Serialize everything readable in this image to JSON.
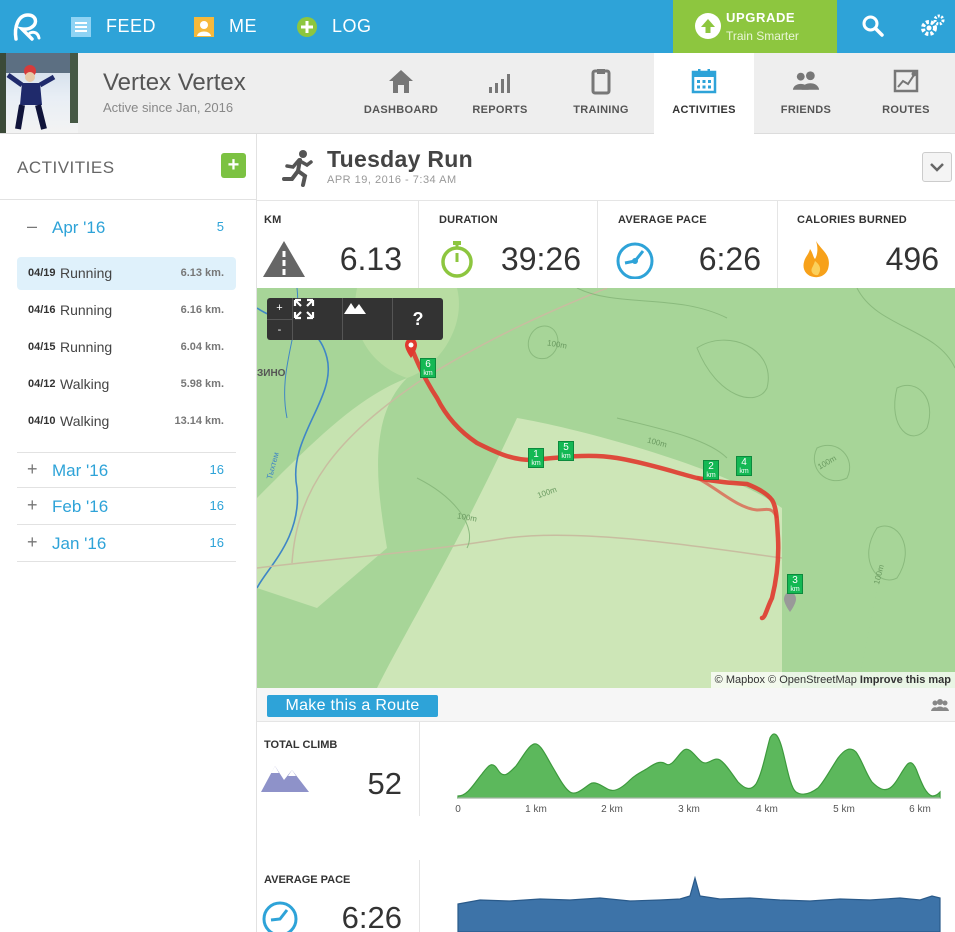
{
  "nav": {
    "feed": "FEED",
    "me": "ME",
    "log": "LOG",
    "upgrade_title": "UPGRADE",
    "upgrade_sub": "Train Smarter"
  },
  "profile": {
    "name": "Vertex Vertex",
    "since": "Active since Jan, 2016"
  },
  "tabs": [
    {
      "label": "DASHBOARD"
    },
    {
      "label": "REPORTS"
    },
    {
      "label": "TRAINING"
    },
    {
      "label": "ACTIVITIES"
    },
    {
      "label": "FRIENDS"
    },
    {
      "label": "ROUTES"
    }
  ],
  "sidebar": {
    "title": "ACTIVITIES",
    "add_label": "+",
    "months": [
      {
        "sign": "–",
        "name": "Apr '16",
        "count": "5"
      },
      {
        "sign": "+",
        "name": "Mar '16",
        "count": "16"
      },
      {
        "sign": "+",
        "name": "Feb '16",
        "count": "16"
      },
      {
        "sign": "+",
        "name": "Jan '16",
        "count": "16"
      }
    ],
    "activities": [
      {
        "date": "04/19",
        "type": "Running",
        "dist": "6.13 km."
      },
      {
        "date": "04/16",
        "type": "Running",
        "dist": "6.16 km."
      },
      {
        "date": "04/15",
        "type": "Running",
        "dist": "6.04 km."
      },
      {
        "date": "04/12",
        "type": "Walking",
        "dist": "5.98 km."
      },
      {
        "date": "04/10",
        "type": "Walking",
        "dist": "13.14 km."
      }
    ]
  },
  "activity": {
    "title": "Tuesday Run",
    "date": "APR 19, 2016  -  7:34 AM"
  },
  "stats": [
    {
      "label": "KM",
      "value": "6.13"
    },
    {
      "label": "DURATION",
      "value": "39:26"
    },
    {
      "label": "AVERAGE PACE",
      "value": "6:26"
    },
    {
      "label": "CALORIES BURNED",
      "value": "496"
    }
  ],
  "map": {
    "zoom_in": "+",
    "zoom_out": "-",
    "help": "?",
    "place_label": "ЗИНО",
    "river_label": "Тыхтем",
    "contour_label": "100m",
    "attr_mapbox": "© Mapbox",
    "attr_osm": "© OpenStreetMap",
    "attr_improve": "Improve this map",
    "km_unit": "km",
    "markers": [
      "1",
      "2",
      "3",
      "4",
      "5",
      "6"
    ]
  },
  "route_button": "Make this a Route",
  "climb": {
    "label": "TOTAL CLIMB",
    "value": "52",
    "ticks": [
      "0",
      "1 km",
      "2 km",
      "3 km",
      "4 km",
      "5 km",
      "6 km"
    ]
  },
  "pace": {
    "label": "AVERAGE PACE",
    "value": "6:26"
  },
  "colors": {
    "nav_blue": "#2ea3d8",
    "upgrade_green": "#8dc63f",
    "route_red": "#e03a2f",
    "km_marker_green": "#14b854",
    "elevation_green": "#5cb85c",
    "pace_blue": "#3d73a8"
  }
}
